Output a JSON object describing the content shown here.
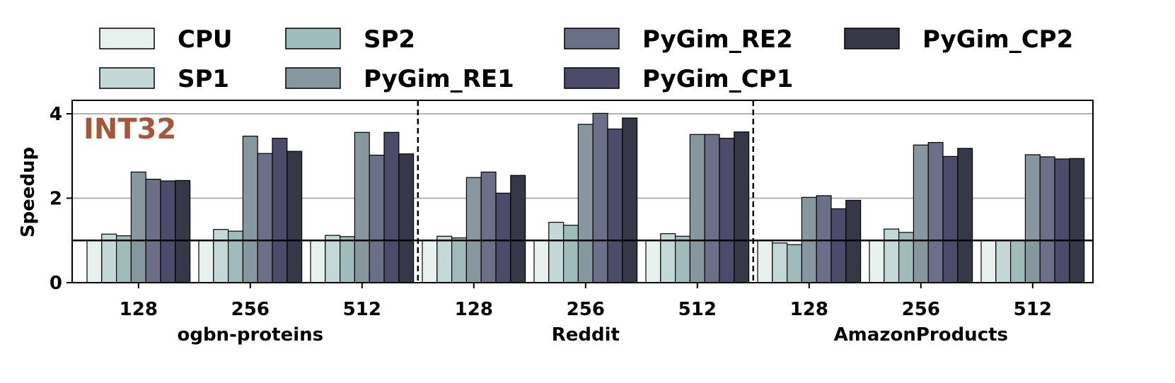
{
  "chart_data": {
    "type": "bar",
    "ylabel": "Speedup",
    "ylim": [
      0,
      4.1
    ],
    "yticks": [
      0,
      2,
      4
    ],
    "annotation": "INT32",
    "legend_position": "top",
    "grid": "horizontal",
    "reference_line": 1,
    "series_names": [
      "CPU",
      "SP1",
      "SP2",
      "PyGim_RE1",
      "PyGim_RE2",
      "PyGim_CP1",
      "PyGim_CP2"
    ],
    "colors": [
      "#e9f1ef",
      "#c3d8d7",
      "#9fbbbb",
      "#86979f",
      "#6b7088",
      "#4d4b6a",
      "#363747"
    ],
    "groups": [
      {
        "name": "ogbn-proteins",
        "categories": [
          "128",
          "256",
          "512"
        ],
        "values": [
          [
            1.0,
            1.15,
            1.11,
            2.62,
            2.45,
            2.41,
            2.42
          ],
          [
            1.0,
            1.26,
            1.22,
            3.47,
            3.06,
            3.42,
            3.11
          ],
          [
            1.0,
            1.12,
            1.09,
            3.56,
            3.02,
            3.56,
            3.05
          ]
        ]
      },
      {
        "name": "Reddit",
        "categories": [
          "128",
          "256",
          "512"
        ],
        "values": [
          [
            1.0,
            1.1,
            1.06,
            2.49,
            2.62,
            2.12,
            2.54
          ],
          [
            1.0,
            1.43,
            1.36,
            3.75,
            4.01,
            3.64,
            3.9
          ],
          [
            1.0,
            1.16,
            1.1,
            3.51,
            3.51,
            3.42,
            3.57
          ]
        ]
      },
      {
        "name": "AmazonProducts",
        "categories": [
          "128",
          "256",
          "512"
        ],
        "values": [
          [
            1.0,
            0.94,
            0.9,
            2.02,
            2.06,
            1.75,
            1.95
          ],
          [
            1.0,
            1.27,
            1.19,
            3.26,
            3.32,
            2.99,
            3.18
          ],
          [
            1.0,
            1.0,
            0.99,
            3.03,
            2.98,
            2.93,
            2.94
          ]
        ]
      }
    ]
  }
}
